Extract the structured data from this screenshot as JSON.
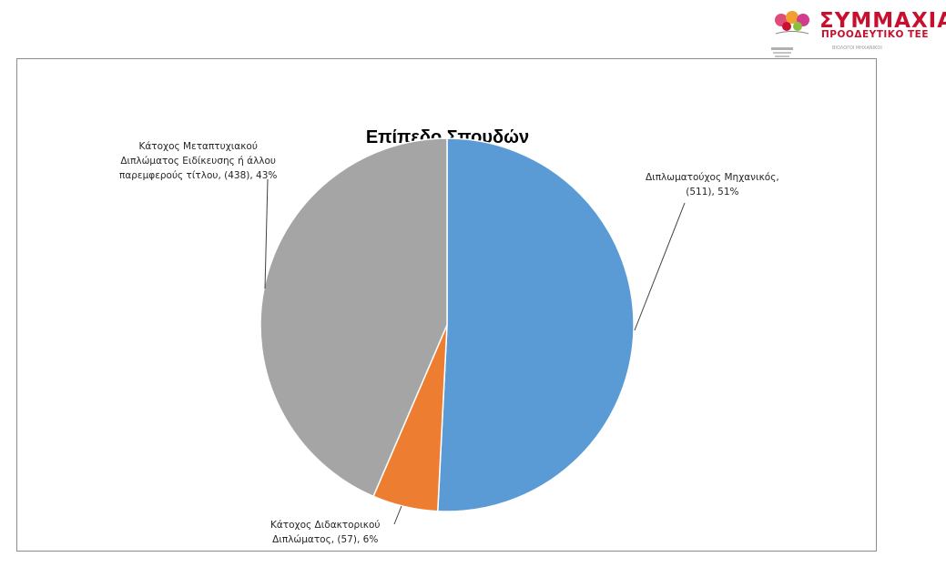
{
  "logo": {
    "brand_main": "ΣΥΜΜΑΧΙΑ",
    "brand_sub": "ΠΡΟΟΔΕΥΤΙΚΟ ΤΕΕ",
    "partner_1": "",
    "partner_2": "ΒΙΟΛΟΓΟΙ ΜΗΧΑΝΙΚΟΙ",
    "partner_3": "",
    "accent_color": "#c8102e"
  },
  "chart_data": {
    "type": "pie",
    "title": "Επίπεδο Σπουδών",
    "categories": [
      "Διπλωματούχος Μηχανικός,",
      "Κάτοχος Διδακτορικού Διπλώματος,",
      "Κάτοχος Μεταπτυχιακού Διπλώματος Ειδίκευσης ή άλλου παρεμφερούς τίτλου,"
    ],
    "values": [
      511,
      57,
      438
    ],
    "percentages": [
      51,
      6,
      43
    ],
    "colors": [
      "#5b9bd5",
      "#ed7d31",
      "#a5a5a5"
    ],
    "start_angle": "12 o'clock",
    "direction": "clockwise",
    "data_labels": [
      {
        "lines": [
          "Διπλωματούχος Μηχανικός,",
          "(511), 51%"
        ]
      },
      {
        "lines": [
          "Κάτοχος Διδακτορικού",
          "Διπλώματος, (57), 6%"
        ]
      },
      {
        "lines": [
          "Κάτοχος Μεταπτυχιακού",
          "Διπλώματος Ειδίκευσης ή άλλου",
          "παρεμφερούς τίτλου, (438), 43%"
        ]
      }
    ],
    "legend": "none"
  }
}
